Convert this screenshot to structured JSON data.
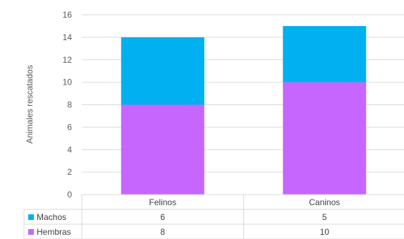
{
  "chart_data": {
    "type": "bar",
    "stacked": true,
    "categories": [
      "Felinos",
      "Caninos"
    ],
    "series": [
      {
        "name": "Hembras",
        "values": [
          8,
          10
        ],
        "color": "#c666ff"
      },
      {
        "name": "Machos",
        "values": [
          6,
          5
        ],
        "color": "#00b0f0"
      }
    ],
    "title": "",
    "xlabel": "",
    "ylabel": "Animales rescatados",
    "ylim": [
      0,
      16
    ],
    "yticks": [
      0,
      2,
      4,
      6,
      8,
      10,
      12,
      14,
      16
    ],
    "grid": true,
    "data_table": {
      "rows": [
        {
          "name": "Machos",
          "values": [
            "6",
            "5"
          ],
          "color": "#00b0f0"
        },
        {
          "name": "Hembras",
          "values": [
            "8",
            "10"
          ],
          "color": "#c666ff"
        }
      ]
    }
  }
}
